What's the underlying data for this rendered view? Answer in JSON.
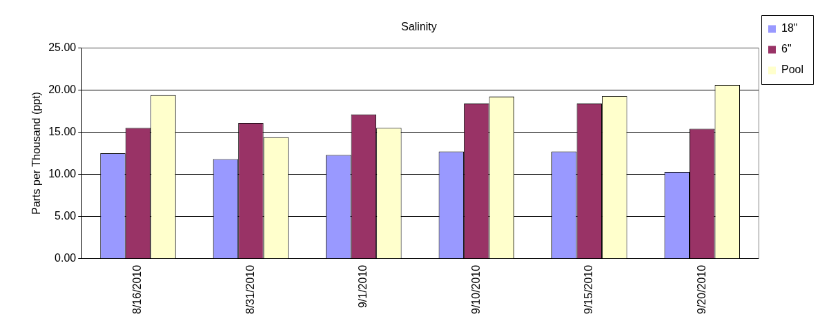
{
  "chart_data": {
    "type": "bar",
    "title": "Salinity",
    "ylabel": "Parts per Thousand (ppt)",
    "categories": [
      "8/16/2010",
      "8/31/2010",
      "9/1/2010",
      "9/10/2010",
      "9/15/2010",
      "9/20/2010"
    ],
    "series": [
      {
        "name": "18\"",
        "color": "#9999ff",
        "values": [
          12.5,
          11.8,
          12.3,
          12.7,
          12.7,
          10.3
        ]
      },
      {
        "name": "6\"",
        "color": "#993366",
        "values": [
          15.5,
          16.1,
          17.1,
          18.4,
          18.4,
          15.4
        ]
      },
      {
        "name": "Pool",
        "color": "#ffffcc",
        "values": [
          19.4,
          14.4,
          15.5,
          19.2,
          19.3,
          20.6
        ]
      }
    ],
    "ylim": [
      0,
      25
    ],
    "yticks": [
      {
        "value": 0,
        "label": "0.00"
      },
      {
        "value": 5,
        "label": "5.00"
      },
      {
        "value": 10,
        "label": "10.00"
      },
      {
        "value": 15,
        "label": "15.00"
      },
      {
        "value": 20,
        "label": "20.00"
      },
      {
        "value": 25,
        "label": "25.00"
      }
    ],
    "grid": "y",
    "legend": "right"
  }
}
